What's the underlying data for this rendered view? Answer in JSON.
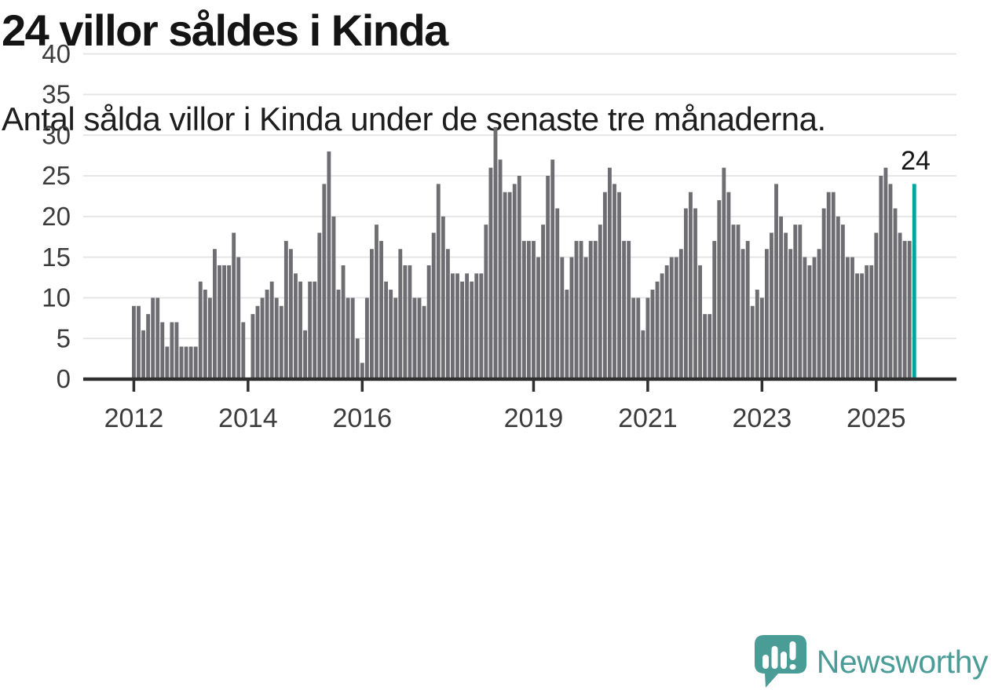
{
  "title": "24 villor såldes i Kinda",
  "subtitle": "Antal sålda villor i Kinda under de senaste tre månaderna.",
  "annotation": {
    "label": "24"
  },
  "logo": {
    "text": "Newsworthy",
    "icon": "speech-bubble-bar-chart-icon"
  },
  "colors": {
    "bar": "#6e6e72",
    "highlight": "#00a49c",
    "grid": "#e4e4e4",
    "axis": "#2f2f2f",
    "axis_text": "#3c3c3c",
    "annotation_text": "#141414",
    "logo": "#4a9c97"
  },
  "chart_data": {
    "type": "bar",
    "title": "24 villor såldes i Kinda",
    "subtitle": "Antal sålda villor i Kinda under de senaste tre månaderna.",
    "x_unit": "månad",
    "start_month": "2012-01",
    "values": [
      9,
      9,
      6,
      8,
      10,
      10,
      7,
      4,
      7,
      7,
      4,
      4,
      4,
      4,
      12,
      11,
      10,
      16,
      14,
      14,
      14,
      18,
      15,
      7,
      0,
      8,
      9,
      10,
      11,
      12,
      10,
      9,
      17,
      16,
      13,
      12,
      6,
      12,
      12,
      18,
      24,
      28,
      20,
      11,
      14,
      10,
      10,
      5,
      2,
      10,
      16,
      19,
      17,
      12,
      11,
      10,
      16,
      14,
      14,
      10,
      10,
      9,
      14,
      18,
      24,
      20,
      16,
      13,
      13,
      12,
      13,
      12,
      13,
      13,
      19,
      26,
      31,
      27,
      23,
      23,
      24,
      25,
      17,
      17,
      17,
      15,
      19,
      25,
      27,
      21,
      15,
      11,
      15,
      17,
      17,
      15,
      17,
      17,
      19,
      23,
      26,
      24,
      23,
      17,
      17,
      10,
      10,
      6,
      10,
      11,
      12,
      13,
      14,
      15,
      15,
      16,
      21,
      23,
      21,
      14,
      8,
      8,
      17,
      22,
      26,
      23,
      19,
      19,
      16,
      17,
      9,
      11,
      10,
      16,
      18,
      24,
      20,
      18,
      16,
      19,
      19,
      15,
      14,
      15,
      16,
      21,
      23,
      23,
      20,
      19,
      15,
      15,
      13,
      13,
      14,
      14,
      18,
      25,
      26,
      24,
      21,
      18,
      17,
      17,
      24
    ],
    "highlight_last": true,
    "last_value_label": "24",
    "ylim": [
      0,
      40
    ],
    "y_ticks": [
      0,
      5,
      10,
      15,
      20,
      25,
      30,
      35,
      40
    ],
    "x_ticks": [
      {
        "label": "2012",
        "bar_index": 0
      },
      {
        "label": "2014",
        "bar_index": 24
      },
      {
        "label": "2016",
        "bar_index": 48
      },
      {
        "label": "2019",
        "bar_index": 84
      },
      {
        "label": "2021",
        "bar_index": 108
      },
      {
        "label": "2023",
        "bar_index": 132
      },
      {
        "label": "2025",
        "bar_index": 156
      }
    ],
    "grid": true,
    "legend": false
  }
}
